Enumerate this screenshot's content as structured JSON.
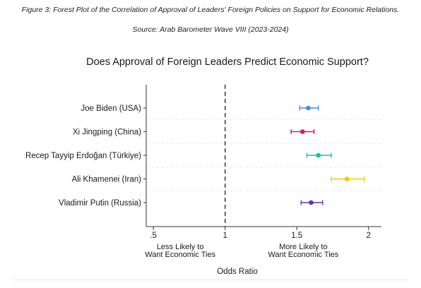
{
  "figure": {
    "caption": "Figure 3: Forest Plot of the Correlation of Approval of Leaders' Foreign Policies on Support for Economic Relations.",
    "source": "Source: Arab Barometer Wave VIII (2023-2024)"
  },
  "chart_data": {
    "type": "scatter",
    "subtype": "forest-plot",
    "title": "Does Approval of Foreign Leaders Predict Economic Support?",
    "xlabel": "Odds Ratio",
    "xlim": [
      0.45,
      2.09
    ],
    "xticks": [
      0.5,
      1,
      1.5,
      2
    ],
    "xtick_labels": [
      ".5",
      "1",
      "1.5",
      "2"
    ],
    "reference_line": 1,
    "annotations": {
      "left": [
        "Less Likely to",
        "Want Economic Ties"
      ],
      "right": [
        "More Likely to",
        "Want Economic Ties"
      ]
    },
    "grid": "horizontal-dashed",
    "series": [
      {
        "label": "Joe Biden (USA)",
        "estimate": 1.58,
        "ci": [
          1.52,
          1.65
        ],
        "color": "#3b8ef0"
      },
      {
        "label": "Xi Jingping (China)",
        "estimate": 1.54,
        "ci": [
          1.46,
          1.62
        ],
        "color": "#d81b60"
      },
      {
        "label": "Recep Tayyip Erdoğan (Türkiye)",
        "estimate": 1.65,
        "ci": [
          1.57,
          1.74
        ],
        "color": "#1ec38b"
      },
      {
        "label": "Ali Khamenei (Iran)",
        "estimate": 1.85,
        "ci": [
          1.74,
          1.97
        ],
        "color": "#f2c80f"
      },
      {
        "label": "Vladimir Putin (Russia)",
        "estimate": 1.6,
        "ci": [
          1.53,
          1.68
        ],
        "color": "#5e35b1"
      }
    ]
  }
}
